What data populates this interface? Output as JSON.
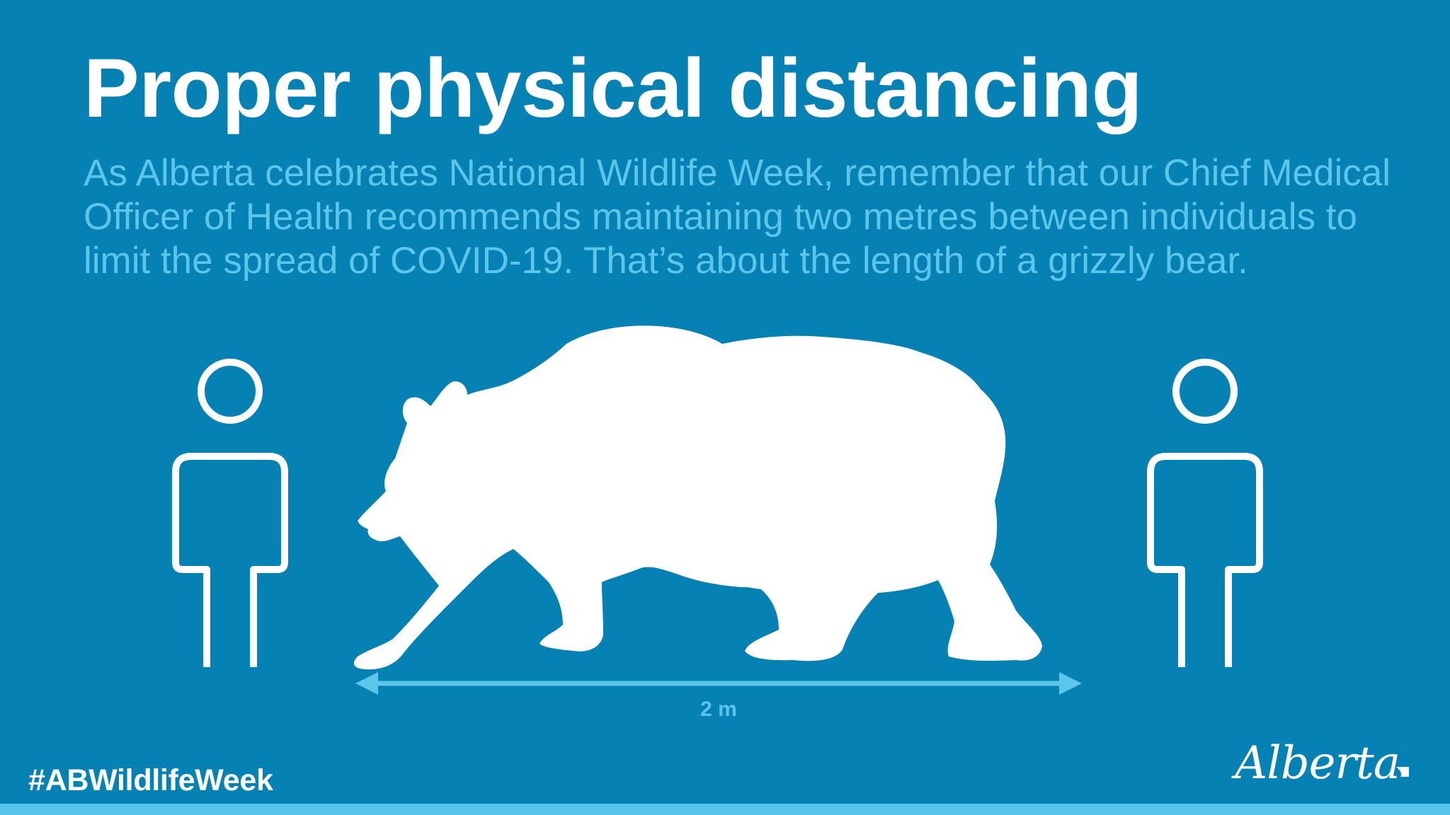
{
  "headline": "Proper physical distancing",
  "body": "As Alberta celebrates National Wildlife Week, remember that our Chief Medical Officer of Health recommends maintaining two metres between individuals to limit the spread of COVID-19. That’s about the length of a grizzly bear.",
  "distance_label": "2 m",
  "hashtag": "#ABWildlifeWeek",
  "logo_text": "Alberta",
  "icons": {
    "left_person": "person-outline-icon",
    "bear": "grizzly-bear-silhouette",
    "right_person": "person-outline-icon",
    "arrow": "double-headed-arrow"
  },
  "colors": {
    "background": "#0582b3",
    "headline": "#ffffff",
    "body_text": "#5cc6ea",
    "accent": "#5cc6ea",
    "footer_band": "#57c5ec"
  }
}
